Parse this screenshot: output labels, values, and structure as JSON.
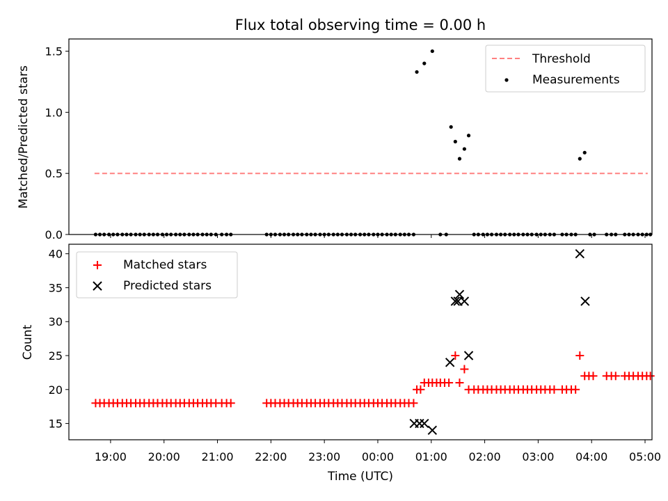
{
  "chart_data": [
    {
      "type": "scatter",
      "title": "Flux total observing time = 0.00 h",
      "xlabel": "",
      "ylabel": "Matched/Predicted stars",
      "xlim_hours": [
        18.22,
        29.13
      ],
      "ylim": [
        0,
        1.6
      ],
      "yticks": [
        0.0,
        0.5,
        1.0,
        1.5
      ],
      "ytick_labels": [
        "0.0",
        "0.5",
        "1.0",
        "1.5"
      ],
      "legend": {
        "position": "top-right",
        "threshold": "Threshold",
        "measurements": "Measurements"
      },
      "threshold": {
        "value": 0.5,
        "x_start": 18.7,
        "x_end": 29.05,
        "color": "#ff8080"
      },
      "measurements": {
        "color": "#000000",
        "x": [
          18.72,
          18.8,
          18.88,
          18.97,
          19.05,
          19.13,
          19.22,
          19.3,
          19.38,
          19.47,
          19.55,
          19.63,
          19.72,
          19.8,
          19.88,
          19.97,
          20.05,
          20.13,
          20.22,
          20.3,
          20.38,
          20.47,
          20.55,
          20.63,
          20.72,
          20.8,
          20.88,
          20.97,
          21.08,
          21.17,
          21.25,
          21.92,
          22.0,
          22.08,
          22.17,
          22.25,
          22.33,
          22.42,
          22.5,
          22.58,
          22.67,
          22.75,
          22.83,
          22.92,
          23.0,
          23.08,
          23.17,
          23.25,
          23.33,
          23.42,
          23.5,
          23.58,
          23.67,
          23.75,
          23.83,
          23.92,
          24.0,
          24.08,
          24.17,
          24.25,
          24.33,
          24.42,
          24.5,
          24.58,
          24.67,
          24.73,
          24.87,
          25.02,
          25.17,
          25.28,
          25.37,
          25.45,
          25.53,
          25.62,
          25.7,
          25.8,
          25.88,
          25.97,
          26.05,
          26.13,
          26.22,
          26.3,
          26.38,
          26.47,
          26.55,
          26.63,
          26.72,
          26.8,
          26.88,
          26.97,
          27.05,
          27.13,
          27.22,
          27.3,
          27.45,
          27.53,
          27.62,
          27.7,
          27.78,
          27.87,
          27.97,
          28.05,
          28.28,
          28.37,
          28.45,
          28.62,
          28.7,
          28.78,
          28.87,
          28.95,
          29.03,
          29.1
        ],
        "y": [
          0,
          0,
          0,
          0,
          0,
          0,
          0,
          0,
          0,
          0,
          0,
          0,
          0,
          0,
          0,
          0,
          0,
          0,
          0,
          0,
          0,
          0,
          0,
          0,
          0,
          0,
          0,
          0,
          0,
          0,
          0,
          0,
          0,
          0,
          0,
          0,
          0,
          0,
          0,
          0,
          0,
          0,
          0,
          0,
          0,
          0,
          0,
          0,
          0,
          0,
          0,
          0,
          0,
          0,
          0,
          0,
          0,
          0,
          0,
          0,
          0,
          0,
          0,
          0,
          0,
          1.33,
          1.4,
          1.5,
          0,
          0,
          0.88,
          0.76,
          0.62,
          0.7,
          0.81,
          0,
          0,
          0,
          0,
          0,
          0,
          0,
          0,
          0,
          0,
          0,
          0,
          0,
          0,
          0,
          0,
          0,
          0,
          0,
          0,
          0,
          0,
          0,
          0.62,
          0.67,
          0,
          0,
          0,
          0,
          0,
          0,
          0,
          0,
          0,
          0,
          0,
          0
        ]
      }
    },
    {
      "type": "scatter",
      "title": "",
      "xlabel": "Time (UTC)",
      "ylabel": "Count",
      "xlim_hours": [
        18.22,
        29.13
      ],
      "ylim": [
        12.6,
        41.4
      ],
      "yticks": [
        15,
        20,
        25,
        30,
        35,
        40
      ],
      "ytick_labels": [
        "15",
        "20",
        "25",
        "30",
        "35",
        "40"
      ],
      "xticks_hours": [
        19,
        20,
        21,
        22,
        23,
        24,
        25,
        26,
        27,
        28,
        29
      ],
      "xtick_labels": [
        "19:00",
        "20:00",
        "21:00",
        "22:00",
        "23:00",
        "00:00",
        "01:00",
        "02:00",
        "03:00",
        "04:00",
        "05:00"
      ],
      "legend": {
        "position": "top-left",
        "matched": "Matched stars",
        "predicted": "Predicted stars"
      },
      "matched": {
        "color": "#ff0000",
        "x": [
          18.72,
          18.8,
          18.88,
          18.97,
          19.05,
          19.13,
          19.22,
          19.3,
          19.38,
          19.47,
          19.55,
          19.63,
          19.72,
          19.8,
          19.88,
          19.97,
          20.05,
          20.13,
          20.22,
          20.3,
          20.38,
          20.47,
          20.55,
          20.63,
          20.72,
          20.8,
          20.88,
          20.97,
          21.08,
          21.17,
          21.25,
          21.92,
          22.0,
          22.08,
          22.17,
          22.25,
          22.33,
          22.42,
          22.5,
          22.58,
          22.67,
          22.75,
          22.83,
          22.92,
          23.0,
          23.08,
          23.17,
          23.25,
          23.33,
          23.42,
          23.5,
          23.58,
          23.67,
          23.75,
          23.83,
          23.92,
          24.0,
          24.08,
          24.17,
          24.25,
          24.33,
          24.42,
          24.5,
          24.58,
          24.67,
          24.73,
          24.8,
          24.87,
          24.95,
          25.02,
          25.1,
          25.17,
          25.25,
          25.33,
          25.45,
          25.53,
          25.62,
          25.7,
          25.8,
          25.88,
          25.97,
          26.05,
          26.13,
          26.22,
          26.3,
          26.38,
          26.47,
          26.55,
          26.63,
          26.72,
          26.8,
          26.88,
          26.97,
          27.05,
          27.13,
          27.22,
          27.3,
          27.45,
          27.53,
          27.62,
          27.7,
          27.78,
          27.87,
          27.95,
          28.03,
          28.28,
          28.37,
          28.45,
          28.62,
          28.7,
          28.78,
          28.87,
          28.95,
          29.03,
          29.1
        ],
        "y": [
          18,
          18,
          18,
          18,
          18,
          18,
          18,
          18,
          18,
          18,
          18,
          18,
          18,
          18,
          18,
          18,
          18,
          18,
          18,
          18,
          18,
          18,
          18,
          18,
          18,
          18,
          18,
          18,
          18,
          18,
          18,
          18,
          18,
          18,
          18,
          18,
          18,
          18,
          18,
          18,
          18,
          18,
          18,
          18,
          18,
          18,
          18,
          18,
          18,
          18,
          18,
          18,
          18,
          18,
          18,
          18,
          18,
          18,
          18,
          18,
          18,
          18,
          18,
          18,
          18,
          20,
          20,
          21,
          21,
          21,
          21,
          21,
          21,
          21,
          25,
          21,
          23,
          20,
          20,
          20,
          20,
          20,
          20,
          20,
          20,
          20,
          20,
          20,
          20,
          20,
          20,
          20,
          20,
          20,
          20,
          20,
          20,
          20,
          20,
          20,
          20,
          25,
          22,
          22,
          22,
          22,
          22,
          22,
          22,
          22,
          22,
          22,
          22,
          22,
          22
        ]
      },
      "predicted": {
        "color": "#000000",
        "x": [
          24.68,
          24.78,
          24.87,
          25.02,
          25.35,
          25.45,
          25.53,
          25.5,
          25.62,
          25.7,
          27.78,
          27.88
        ],
        "y": [
          15,
          15,
          15,
          14,
          24,
          33,
          34,
          33,
          33,
          25,
          40,
          33
        ]
      }
    }
  ]
}
